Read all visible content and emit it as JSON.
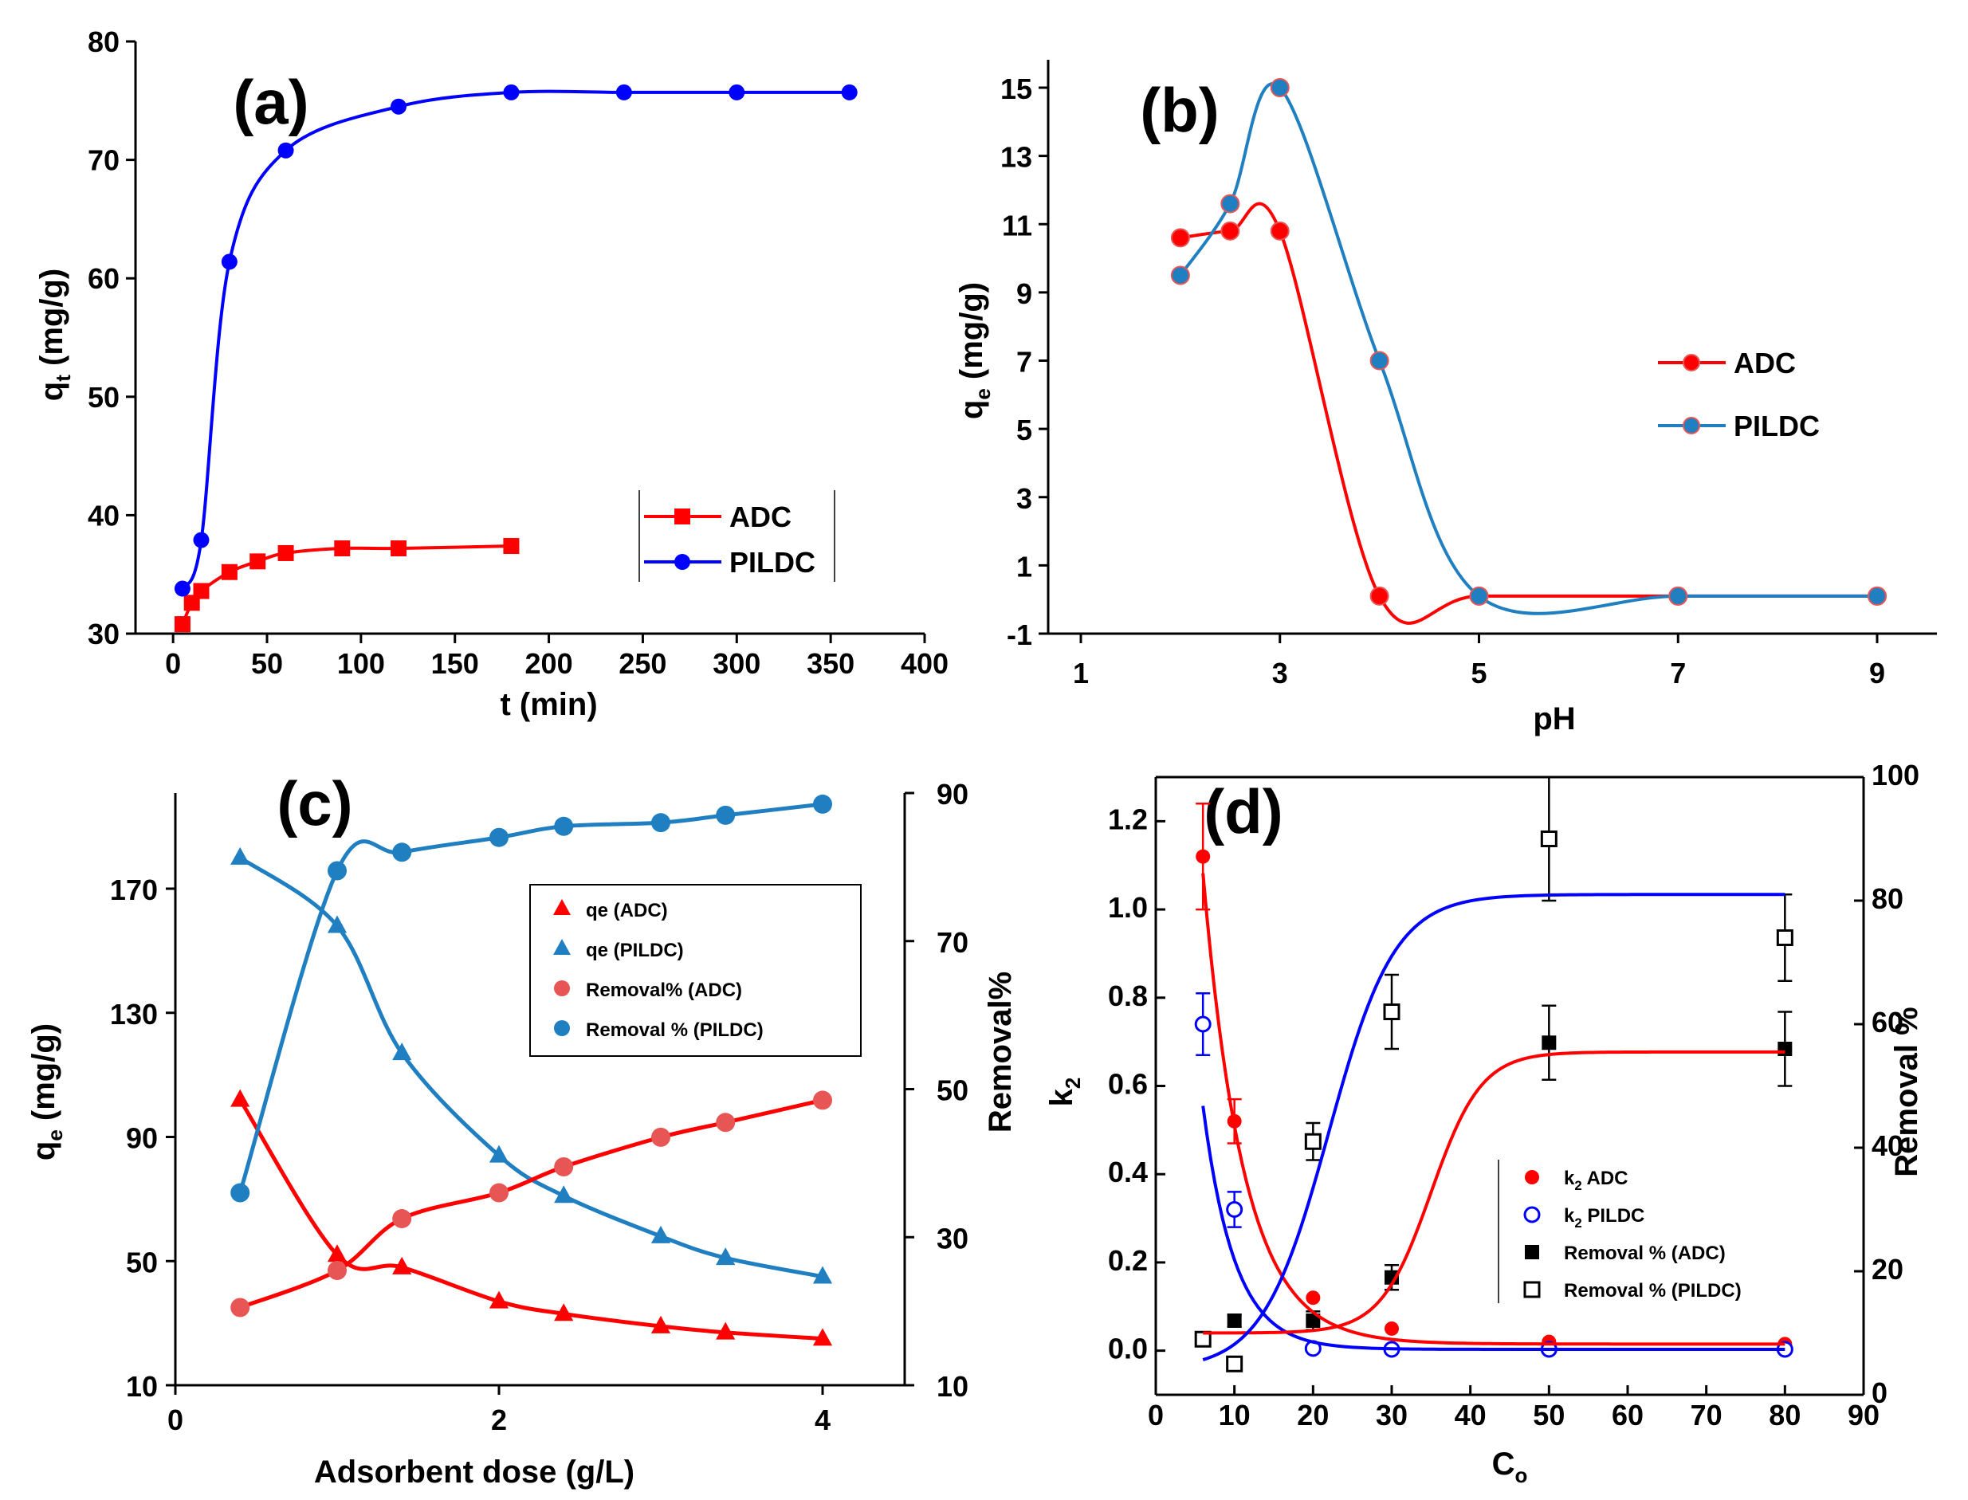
{
  "chart_data": [
    {
      "id": "a",
      "type": "line",
      "panel_label": "(a)",
      "xlabel": "t (min)",
      "ylabel_main": "q",
      "ylabel_sub": "t",
      "ylabel_tail": " (mg/g)",
      "xlim": [
        -20,
        400
      ],
      "ylim": [
        30,
        80
      ],
      "xticks": [
        0,
        50,
        100,
        150,
        200,
        250,
        300,
        350,
        400
      ],
      "yticks": [
        30,
        40,
        50,
        60,
        70,
        80
      ],
      "series": [
        {
          "name": "ADC",
          "color": "#ff0000",
          "marker": "square",
          "x": [
            5,
            10,
            15,
            30,
            45,
            60,
            90,
            120,
            180
          ],
          "y": [
            30.8,
            32.6,
            33.6,
            35.2,
            36.1,
            36.8,
            37.2,
            37.2,
            37.4
          ]
        },
        {
          "name": "PILDC",
          "color": "#0000ff",
          "marker": "circle",
          "x": [
            5,
            15,
            30,
            60,
            120,
            180,
            240,
            300,
            360
          ],
          "y": [
            33.8,
            37.9,
            61.4,
            70.8,
            74.5,
            75.7,
            75.7,
            75.7,
            75.7
          ]
        }
      ],
      "legend_position": "lower-right"
    },
    {
      "id": "b",
      "type": "line",
      "panel_label": "(b)",
      "xlabel": "pH",
      "ylabel_main": "q",
      "ylabel_sub": "e",
      "ylabel_tail": " (mg/g)",
      "xlim": [
        1,
        10
      ],
      "ylim": [
        -1,
        15.5
      ],
      "xticks": [
        1,
        3,
        5,
        7,
        9
      ],
      "yticks": [
        -1,
        1,
        3,
        5,
        7,
        9,
        11,
        13,
        15
      ],
      "series": [
        {
          "name": "ADC",
          "color": "#ff0000",
          "marker": "circle",
          "x": [
            2,
            2.5,
            3,
            4,
            5,
            7,
            9
          ],
          "y": [
            10.6,
            10.8,
            10.8,
            0.1,
            0.1,
            0.1,
            0.1
          ]
        },
        {
          "name": "PILDC",
          "color": "#1f7fc0",
          "marker": "circle",
          "x": [
            2,
            2.5,
            3,
            4,
            5,
            7,
            9
          ],
          "y": [
            9.5,
            11.6,
            15.0,
            7.0,
            0.1,
            0.1,
            0.1
          ]
        }
      ],
      "legend_position": "right"
    },
    {
      "id": "c",
      "type": "scatter",
      "panel_label": "(c)",
      "xlabel": "Adsorbent dose (g/L)",
      "ylabel_main": "q",
      "ylabel_sub": "e",
      "ylabel_tail": " (mg/g)",
      "y2label": "Removal%",
      "xlim": [
        0,
        4.5
      ],
      "ylim": [
        10,
        210
      ],
      "y2lim": [
        10,
        90
      ],
      "xticks": [
        0,
        2,
        4
      ],
      "yticks": [
        10,
        50,
        90,
        130,
        170
      ],
      "y2ticks": [
        10,
        30,
        50,
        70,
        90
      ],
      "series": [
        {
          "name": "qe (ADC)",
          "axis": "left",
          "color": "#ff0000",
          "marker": "triangle",
          "x": [
            0.4,
            1.0,
            1.4,
            2.0,
            2.4,
            3.0,
            3.4,
            4.0
          ],
          "y": [
            102,
            52,
            48,
            37,
            33,
            29,
            27,
            25
          ]
        },
        {
          "name": "qe (PILDC)",
          "axis": "left",
          "color": "#1f7fc0",
          "marker": "triangle",
          "x": [
            0.4,
            1.0,
            1.4,
            2.0,
            2.4,
            3.0,
            3.4,
            4.0
          ],
          "y": [
            180,
            158,
            117,
            84,
            71,
            58,
            51,
            45
          ]
        },
        {
          "name": "Removal% (ADC)",
          "axis": "right",
          "color": "#e85555",
          "marker": "circle",
          "x": [
            0.4,
            1.0,
            1.4,
            2.0,
            2.4,
            3.0,
            3.4,
            4.0
          ],
          "y": [
            20.5,
            25.5,
            32.5,
            36.0,
            39.5,
            43.5,
            45.5,
            48.5
          ]
        },
        {
          "name": "Removal % (PILDC)",
          "axis": "right",
          "color": "#1f7fc0",
          "marker": "circle",
          "x": [
            0.4,
            1.0,
            1.4,
            2.0,
            2.4,
            3.0,
            3.4,
            4.0
          ],
          "y": [
            36.0,
            79.5,
            82.0,
            84.0,
            85.5,
            86.0,
            87.0,
            88.5
          ]
        }
      ],
      "legend_position": "upper-right"
    },
    {
      "id": "d",
      "type": "scatter",
      "panel_label": "(d)",
      "xlabel_main": "C",
      "xlabel_sub": "o",
      "ylabel_main": "k",
      "ylabel_sub": "2",
      "y2label": "Removal %",
      "xlim": [
        0,
        90
      ],
      "ylim": [
        -0.1,
        1.3
      ],
      "y2lim": [
        0,
        100
      ],
      "xticks": [
        0,
        10,
        20,
        30,
        40,
        50,
        60,
        70,
        80,
        90
      ],
      "yticks": [
        0.0,
        0.2,
        0.4,
        0.6,
        0.8,
        1.0,
        1.2
      ],
      "ytick_labels": [
        "0.0",
        "0.2",
        "0.4",
        "0.6",
        "0.8",
        "1.0",
        "1.2"
      ],
      "y2ticks": [
        0,
        20,
        40,
        60,
        80,
        100
      ],
      "series": [
        {
          "name_main": "k",
          "name_sub": "2",
          "name_tail": " ADC",
          "axis": "left",
          "color": "#ff0000",
          "marker": "circle",
          "x": [
            6,
            10,
            20,
            30,
            50,
            80
          ],
          "y": [
            1.12,
            0.52,
            0.12,
            0.05,
            0.02,
            0.015
          ],
          "err": [
            0.12,
            0.05,
            0.0,
            0.0,
            0.0,
            0.0
          ]
        },
        {
          "name_main": "k",
          "name_sub": "2",
          "name_tail": " PILDC",
          "axis": "left",
          "color": "#0000ff",
          "marker": "open-circle",
          "x": [
            6,
            10,
            20,
            30,
            50,
            80
          ],
          "y": [
            0.74,
            0.32,
            0.005,
            0.003,
            0.003,
            0.003
          ],
          "err": [
            0.07,
            0.04,
            0.0,
            0.0,
            0.0,
            0.0
          ]
        },
        {
          "name": "Removal % (ADC)",
          "axis": "right",
          "color": "#000000",
          "marker": "square",
          "x": [
            6,
            10,
            20,
            30,
            50,
            80
          ],
          "y": [
            9,
            12,
            12,
            19,
            57,
            56
          ],
          "err": [
            1,
            1,
            1.5,
            2,
            6,
            6
          ]
        },
        {
          "name": "Removal % (PILDC)",
          "axis": "right",
          "color": "#000000",
          "marker": "open-square",
          "x": [
            6,
            10,
            20,
            30,
            50,
            80
          ],
          "y": [
            9,
            5,
            41,
            62,
            90,
            74
          ],
          "err": [
            1,
            1,
            3,
            6,
            10,
            7
          ]
        }
      ],
      "legend_position": "lower-right"
    }
  ]
}
